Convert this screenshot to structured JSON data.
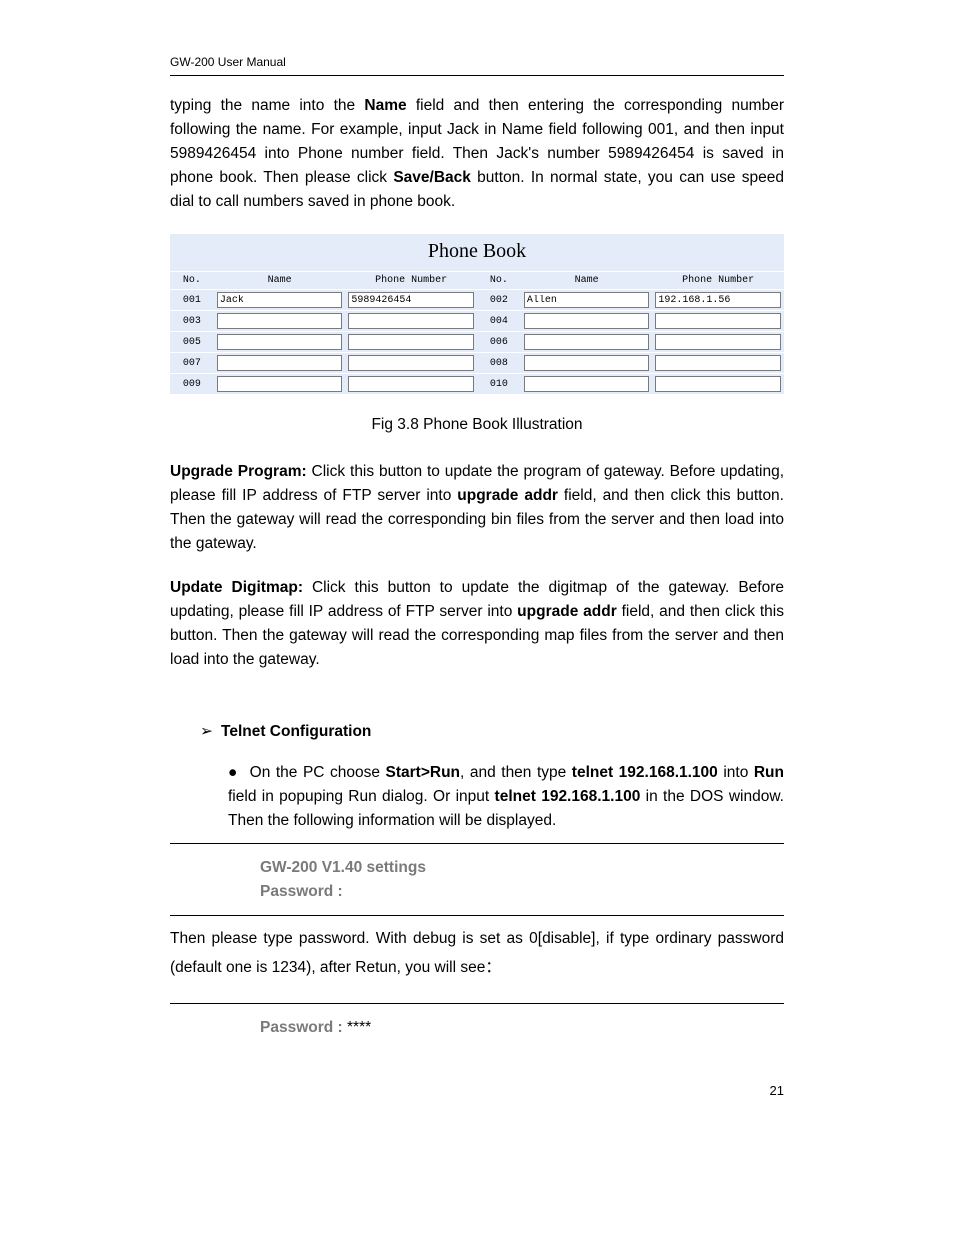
{
  "header": "GW-200 User Manual",
  "page_number": "21",
  "para_intro": {
    "pre1": "typing the name into the ",
    "b1": "Name",
    "mid1": " field and then entering the corresponding number following the name. For example, input Jack in Name field following 001, and then input 5989426454 into Phone number field. Then Jack's number 5989426454 is saved in phone book. Then please click ",
    "b2": "Save/Back",
    "post1": " button. In normal state, you can use speed dial to call numbers saved in phone book."
  },
  "phonebook": {
    "title": "Phone Book",
    "headers": {
      "no": "No.",
      "name": "Name",
      "phone": "Phone Number"
    },
    "rows": [
      {
        "left_no": "001",
        "left_name": "Jack",
        "left_phone": "5989426454",
        "right_no": "002",
        "right_name": "Allen",
        "right_phone": "192.168.1.56"
      },
      {
        "left_no": "003",
        "left_name": "",
        "left_phone": "",
        "right_no": "004",
        "right_name": "",
        "right_phone": ""
      },
      {
        "left_no": "005",
        "left_name": "",
        "left_phone": "",
        "right_no": "006",
        "right_name": "",
        "right_phone": ""
      },
      {
        "left_no": "007",
        "left_name": "",
        "left_phone": "",
        "right_no": "008",
        "right_name": "",
        "right_phone": ""
      },
      {
        "left_no": "009",
        "left_name": "",
        "left_phone": "",
        "right_no": "010",
        "right_name": "",
        "right_phone": ""
      }
    ]
  },
  "figure_caption": "Fig 3.8 Phone Book Illustration",
  "para_upgrade": {
    "b1": "Upgrade Program: ",
    "t1": "Click this button to update the program of gateway. Before updating, please fill IP address of FTP server into ",
    "b2": "upgrade addr",
    "t2": " field, and then click this button. Then the gateway will read the corresponding bin files from the server and then load into the gateway."
  },
  "para_digitmap": {
    "b1": "Update Digitmap: ",
    "t1": "Click this button to update the digitmap of the gateway. Before updating, please fill IP address of FTP server into ",
    "b2": "upgrade addr",
    "t2": " field, and then click this button. Then the gateway will read the corresponding map files from the server and then load into the gateway."
  },
  "telnet_section": {
    "head_arrow": "➢",
    "head_text": "Telnet Configuration",
    "bullet_dot": "●",
    "bullet": {
      "t1": "On the PC choose ",
      "b1": "Start>Run",
      "t2": ", and then type ",
      "b2": "telnet 192.168.1.100",
      "t3": " into ",
      "b3": "Run",
      "t4": " field in popuping Run dialog. Or input ",
      "b4": "telnet 192.168.1.100",
      "t5": " in the DOS window. Then the following information will be displayed."
    },
    "box1_line1": "GW-200 V1.40 settings",
    "box1_line2": "Password :"
  },
  "para_password": "Then please type password. With debug is set as 0[disable], if type ordinary password (default one is 1234), after Retun, you will see：",
  "box2_label": "Password : ",
  "box2_stars": "****"
}
